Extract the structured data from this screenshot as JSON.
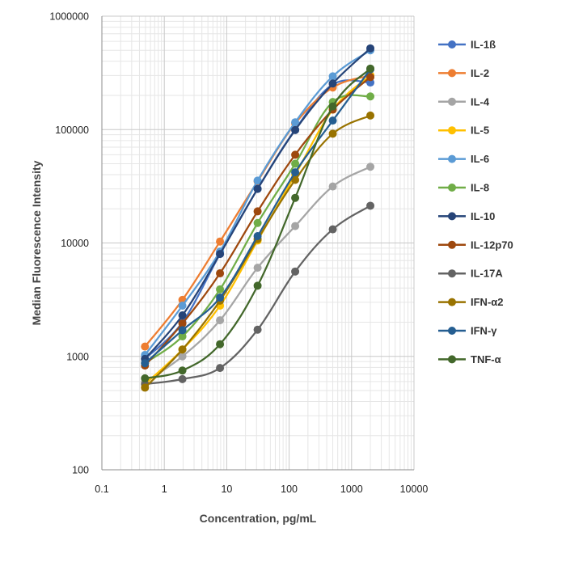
{
  "chart_data": {
    "type": "line",
    "title": "",
    "xlabel": "Concentration, pg/mL",
    "ylabel": "Median Fluorescence Intensity",
    "x_scale": "log",
    "y_scale": "log",
    "xlim": [
      0.1,
      10000
    ],
    "ylim": [
      100,
      1000000
    ],
    "x_ticks": [
      0.1,
      1,
      10,
      100,
      1000,
      10000
    ],
    "x_tick_labels": [
      "0.1",
      "1",
      "10",
      "100",
      "1000",
      "10000"
    ],
    "y_ticks": [
      100,
      1000,
      10000,
      100000,
      1000000
    ],
    "y_tick_labels": [
      "100",
      "1000",
      "10000",
      "100000",
      "1000000"
    ],
    "grid": true,
    "minor_grid": true,
    "legend_position": "right",
    "x": [
      0.49,
      1.95,
      7.8,
      31.25,
      125,
      500,
      2000
    ],
    "series": [
      {
        "name": "IL-1ß",
        "color": "#4472C4",
        "values": [
          950,
          2000,
          8000,
          30000,
          100000,
          250000,
          260000
        ]
      },
      {
        "name": "IL-2",
        "color": "#ED7D31",
        "values": [
          1220,
          3150,
          10300,
          35000,
          113000,
          235000,
          300000
        ]
      },
      {
        "name": "IL-4",
        "color": "#A5A5A5",
        "values": [
          590,
          1000,
          2080,
          6050,
          14100,
          31500,
          47000
        ]
      },
      {
        "name": "IL-5",
        "color": "#FFC000",
        "values": [
          570,
          1150,
          2800,
          10500,
          40000,
          150000,
          300000
        ]
      },
      {
        "name": "IL-6",
        "color": "#5B9BD5",
        "values": [
          1030,
          2800,
          8400,
          35500,
          116000,
          295000,
          500000
        ]
      },
      {
        "name": "IL-8",
        "color": "#70AD47",
        "values": [
          870,
          1500,
          3900,
          15000,
          50000,
          175000,
          196000
        ]
      },
      {
        "name": "IL-10",
        "color": "#264478",
        "values": [
          950,
          2300,
          8000,
          30000,
          99000,
          255000,
          520000
        ]
      },
      {
        "name": "IL-12p70",
        "color": "#9E480E",
        "values": [
          830,
          1950,
          5400,
          19000,
          60000,
          150000,
          290000
        ]
      },
      {
        "name": "IL-17A",
        "color": "#636363",
        "values": [
          570,
          630,
          790,
          1720,
          5600,
          13200,
          21300
        ]
      },
      {
        "name": "IFN-α2",
        "color": "#997300",
        "values": [
          530,
          1150,
          3100,
          10800,
          36000,
          92000,
          133000
        ]
      },
      {
        "name": "IFN-γ",
        "color": "#255E91",
        "values": [
          870,
          1700,
          3300,
          11500,
          42000,
          120000,
          340000
        ]
      },
      {
        "name": "TNF-α",
        "color": "#43682B",
        "values": [
          640,
          750,
          1280,
          4200,
          25000,
          160000,
          345000
        ]
      }
    ]
  }
}
